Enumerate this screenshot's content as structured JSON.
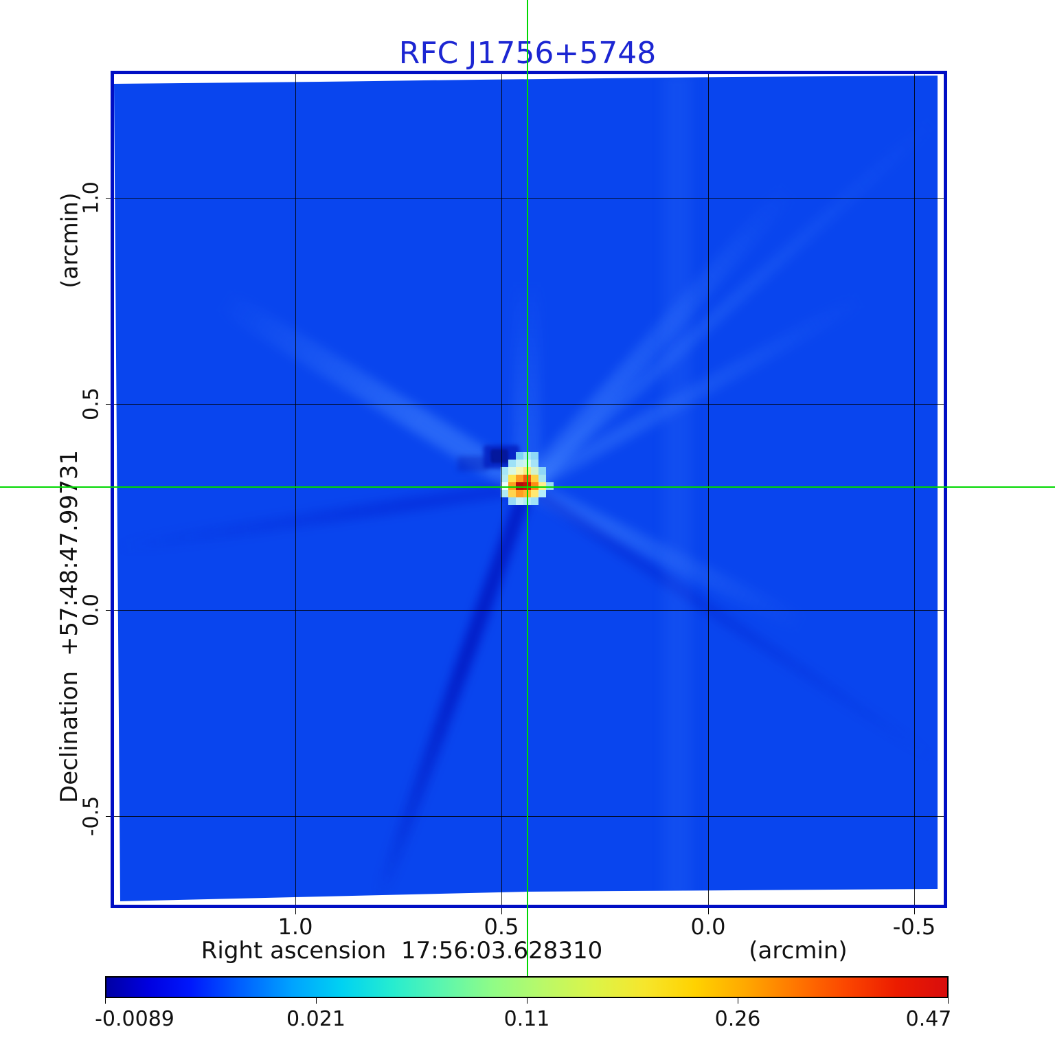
{
  "title": {
    "text": "RFC J1756+5748",
    "color": "#1c26d2"
  },
  "axes": {
    "x": {
      "label": "Right ascension  17:56:03.628310",
      "unit": "(arcmin)",
      "ticks": [
        "1.0",
        "0.5",
        "0.0",
        "-0.5"
      ]
    },
    "y": {
      "label": "Declination  +57:48:47.99731",
      "unit": "(arcmin)",
      "ticks": [
        "1.0",
        "0.5",
        "0.0",
        "-0.5"
      ]
    }
  },
  "colorbar": {
    "ticks": [
      "-0.0089",
      "0.021",
      "0.11",
      "0.26",
      "0.47"
    ]
  },
  "chart_data": {
    "type": "heatmap",
    "title": "RFC J1756+5748",
    "xlabel": "Right ascension  17:56:03.628310 (arcmin)",
    "ylabel": "Declination  +57:48:47.99731 (arcmin)",
    "x_ticks_arcmin": [
      1.0,
      0.5,
      0.0,
      -0.5
    ],
    "y_ticks_arcmin": [
      1.0,
      0.5,
      0.0,
      -0.5
    ],
    "x_range_arcmin": [
      1.45,
      -0.57
    ],
    "y_range_arcmin": [
      1.3,
      -0.71
    ],
    "colormap": "jet",
    "colorbar_tick_values": [
      -0.0089,
      0.021,
      0.11,
      0.26,
      0.47
    ],
    "colorbar_scale": "nonlinear (approx sqrt), flux density Jy/beam",
    "background_value": 0.0,
    "peak_value": 0.47,
    "crosshair_color": "#00d800",
    "crosshair_position_arcmin": {
      "x": 0.44,
      "y": 0.3
    },
    "source": {
      "description": "compact bright source at crosshair intersection with red core, orange/yellow halo, cyan ring",
      "negative_sidelobe": "dark navy depression immediately above-left of source"
    },
    "artifacts": "faint radial sidelobe streaks (lighter and darker blue) radiating from source; slight image rotation leaves white wedges at frame edges",
    "source_pixels": [
      [
        "",
        "",
        "#7fd4f5",
        "#a9e6f8",
        "#8fd9f6",
        "",
        ""
      ],
      [
        "",
        "#9fe2f7",
        "#c8f2f4",
        "#d2f6ee",
        "#a5e3f7",
        "",
        ""
      ],
      [
        "#a5e6f8",
        "#d9f8e2",
        "#f7f7b0",
        "#fdea7c",
        "#d2f2cc",
        "#8fd8f6",
        ""
      ],
      [
        "#b5ecf2",
        "#ffe44e",
        "#ff9e20",
        "#f2590e",
        "#ffd240",
        "#a8e7f0",
        ""
      ],
      [
        "#eefcff",
        "#ff9e20",
        "#b50b0b",
        "#c61108",
        "#ff8c14",
        "#ffee8c",
        "#9adcf6"
      ],
      [
        "#aee9f4",
        "#ffd54e",
        "#ff9e20",
        "#ffb72c",
        "#ffe970",
        "#b5edfa",
        ""
      ],
      [
        "",
        "#98daf5",
        "#c8f2f4",
        "#b2eaf6",
        "#9fe2f7",
        "",
        ""
      ]
    ]
  }
}
